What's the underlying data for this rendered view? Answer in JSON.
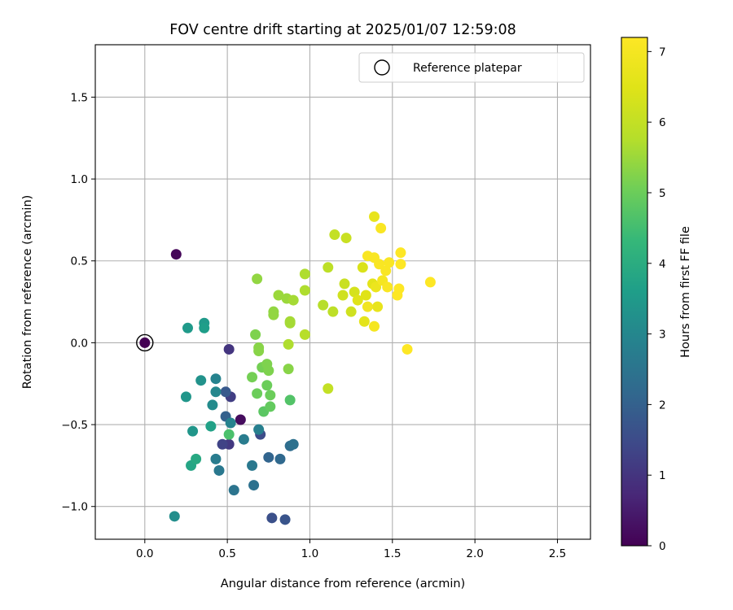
{
  "chart_data": {
    "type": "scatter",
    "title": "FOV centre drift starting at 2025/01/07 12:59:08",
    "xlabel": "Angular distance from reference (arcmin)",
    "ylabel": "Rotation from reference (arcmin)",
    "xlim": [
      -0.3,
      2.7
    ],
    "ylim": [
      -1.2,
      1.82
    ],
    "xticks": [
      0.0,
      0.5,
      1.0,
      1.5,
      2.0,
      2.5
    ],
    "xtick_labels": [
      "0.0",
      "0.5",
      "1.0",
      "1.5",
      "2.0",
      "2.5"
    ],
    "yticks": [
      -1.0,
      -0.5,
      0.0,
      0.5,
      1.0,
      1.5
    ],
    "ytick_labels": [
      "−1.0",
      "−0.5",
      "0.0",
      "0.5",
      "1.0",
      "1.5"
    ],
    "grid": true,
    "legend": {
      "position": "top-right",
      "entries": [
        "Reference platepar"
      ]
    },
    "colorbar": {
      "label": "Hours from first FF file",
      "range": [
        0,
        7.2
      ],
      "ticks": [
        0,
        1,
        2,
        3,
        4,
        5,
        6,
        7
      ],
      "tick_labels": [
        "0",
        "1",
        "2",
        "3",
        "4",
        "5",
        "6",
        "7"
      ],
      "colormap": "viridis"
    },
    "reference_point": {
      "x": 0.0,
      "y": 0.0,
      "label": "Reference platepar",
      "hours": 0.0
    },
    "points": [
      {
        "x": 0.0,
        "y": 0.0,
        "hours": 0.0
      },
      {
        "x": 0.19,
        "y": 0.54,
        "hours": 0.1
      },
      {
        "x": 0.58,
        "y": -0.47,
        "hours": 0.2
      },
      {
        "x": 0.51,
        "y": -0.04,
        "hours": 1.0
      },
      {
        "x": 0.51,
        "y": -0.62,
        "hours": 1.1
      },
      {
        "x": 0.52,
        "y": -0.33,
        "hours": 1.2
      },
      {
        "x": 0.47,
        "y": -0.62,
        "hours": 1.3
      },
      {
        "x": 0.7,
        "y": -0.56,
        "hours": 1.5
      },
      {
        "x": 0.77,
        "y": -1.07,
        "hours": 1.6
      },
      {
        "x": 0.85,
        "y": -1.08,
        "hours": 1.7
      },
      {
        "x": 0.49,
        "y": -0.3,
        "hours": 1.8
      },
      {
        "x": 0.49,
        "y": -0.45,
        "hours": 2.0
      },
      {
        "x": 0.75,
        "y": -0.7,
        "hours": 2.1
      },
      {
        "x": 0.82,
        "y": -0.71,
        "hours": 2.2
      },
      {
        "x": 0.88,
        "y": -0.63,
        "hours": 2.3
      },
      {
        "x": 0.9,
        "y": -0.62,
        "hours": 2.4
      },
      {
        "x": 0.66,
        "y": -0.87,
        "hours": 2.4
      },
      {
        "x": 0.54,
        "y": -0.9,
        "hours": 2.5
      },
      {
        "x": 0.65,
        "y": -0.75,
        "hours": 2.6
      },
      {
        "x": 0.45,
        "y": -0.78,
        "hours": 2.6
      },
      {
        "x": 0.43,
        "y": -0.71,
        "hours": 2.7
      },
      {
        "x": 0.6,
        "y": -0.59,
        "hours": 2.7
      },
      {
        "x": 0.69,
        "y": -0.53,
        "hours": 2.8
      },
      {
        "x": 0.52,
        "y": -0.49,
        "hours": 2.9
      },
      {
        "x": 0.43,
        "y": -0.22,
        "hours": 2.9
      },
      {
        "x": 0.43,
        "y": -0.3,
        "hours": 3.0
      },
      {
        "x": 0.41,
        "y": -0.38,
        "hours": 3.1
      },
      {
        "x": 0.18,
        "y": -1.06,
        "hours": 3.2
      },
      {
        "x": 0.34,
        "y": -0.23,
        "hours": 3.3
      },
      {
        "x": 0.25,
        "y": -0.33,
        "hours": 3.4
      },
      {
        "x": 0.29,
        "y": -0.54,
        "hours": 3.4
      },
      {
        "x": 0.26,
        "y": 0.09,
        "hours": 3.5
      },
      {
        "x": 0.36,
        "y": 0.12,
        "hours": 3.5
      },
      {
        "x": 0.36,
        "y": 0.09,
        "hours": 3.6
      },
      {
        "x": 0.4,
        "y": -0.51,
        "hours": 3.7
      },
      {
        "x": 0.28,
        "y": -0.75,
        "hours": 3.8
      },
      {
        "x": 0.31,
        "y": -0.71,
        "hours": 3.9
      },
      {
        "x": 0.51,
        "y": -0.56,
        "hours": 4.6
      },
      {
        "x": 0.88,
        "y": -0.35,
        "hours": 4.7
      },
      {
        "x": 0.72,
        "y": -0.42,
        "hours": 4.8
      },
      {
        "x": 0.76,
        "y": -0.39,
        "hours": 4.9
      },
      {
        "x": 0.68,
        "y": -0.31,
        "hours": 5.0
      },
      {
        "x": 0.74,
        "y": -0.26,
        "hours": 5.0
      },
      {
        "x": 0.76,
        "y": -0.32,
        "hours": 5.0
      },
      {
        "x": 0.65,
        "y": -0.21,
        "hours": 5.1
      },
      {
        "x": 0.71,
        "y": -0.15,
        "hours": 5.1
      },
      {
        "x": 0.74,
        "y": -0.13,
        "hours": 5.2
      },
      {
        "x": 0.75,
        "y": -0.17,
        "hours": 5.2
      },
      {
        "x": 0.67,
        "y": 0.05,
        "hours": 5.2
      },
      {
        "x": 0.69,
        "y": -0.03,
        "hours": 5.3
      },
      {
        "x": 0.69,
        "y": -0.05,
        "hours": 5.3
      },
      {
        "x": 0.87,
        "y": -0.16,
        "hours": 5.3
      },
      {
        "x": 0.68,
        "y": 0.39,
        "hours": 5.4
      },
      {
        "x": 0.78,
        "y": 0.19,
        "hours": 5.4
      },
      {
        "x": 0.78,
        "y": 0.17,
        "hours": 5.4
      },
      {
        "x": 0.81,
        "y": 0.29,
        "hours": 5.5
      },
      {
        "x": 0.86,
        "y": 0.27,
        "hours": 5.5
      },
      {
        "x": 0.9,
        "y": 0.26,
        "hours": 5.6
      },
      {
        "x": 0.88,
        "y": 0.13,
        "hours": 5.6
      },
      {
        "x": 0.88,
        "y": 0.12,
        "hours": 5.6
      },
      {
        "x": 0.87,
        "y": -0.01,
        "hours": 5.7
      },
      {
        "x": 0.97,
        "y": 0.42,
        "hours": 5.7
      },
      {
        "x": 0.97,
        "y": 0.32,
        "hours": 5.7
      },
      {
        "x": 0.97,
        "y": 0.05,
        "hours": 5.8
      },
      {
        "x": 1.08,
        "y": 0.23,
        "hours": 5.8
      },
      {
        "x": 1.11,
        "y": 0.46,
        "hours": 5.9
      },
      {
        "x": 1.14,
        "y": 0.19,
        "hours": 5.9
      },
      {
        "x": 1.11,
        "y": -0.28,
        "hours": 6.0
      },
      {
        "x": 1.15,
        "y": 0.66,
        "hours": 6.0
      },
      {
        "x": 1.22,
        "y": 0.64,
        "hours": 6.1
      },
      {
        "x": 1.21,
        "y": 0.36,
        "hours": 6.1
      },
      {
        "x": 1.2,
        "y": 0.29,
        "hours": 6.2
      },
      {
        "x": 1.25,
        "y": 0.19,
        "hours": 6.2
      },
      {
        "x": 1.27,
        "y": 0.31,
        "hours": 6.3
      },
      {
        "x": 1.32,
        "y": 0.46,
        "hours": 6.4
      },
      {
        "x": 1.29,
        "y": 0.26,
        "hours": 6.5
      },
      {
        "x": 1.34,
        "y": 0.29,
        "hours": 6.5
      },
      {
        "x": 1.33,
        "y": 0.13,
        "hours": 6.6
      },
      {
        "x": 1.38,
        "y": 0.36,
        "hours": 6.6
      },
      {
        "x": 1.39,
        "y": 0.77,
        "hours": 6.7
      },
      {
        "x": 1.41,
        "y": 0.22,
        "hours": 6.7
      },
      {
        "x": 1.4,
        "y": 0.34,
        "hours": 6.8
      },
      {
        "x": 1.35,
        "y": 0.22,
        "hours": 6.9
      },
      {
        "x": 1.39,
        "y": 0.1,
        "hours": 7.0
      },
      {
        "x": 1.44,
        "y": 0.38,
        "hours": 7.0
      },
      {
        "x": 1.43,
        "y": 0.7,
        "hours": 7.1
      },
      {
        "x": 1.35,
        "y": 0.53,
        "hours": 7.1
      },
      {
        "x": 1.39,
        "y": 0.52,
        "hours": 7.1
      },
      {
        "x": 1.42,
        "y": 0.48,
        "hours": 7.1
      },
      {
        "x": 1.46,
        "y": 0.44,
        "hours": 7.1
      },
      {
        "x": 1.48,
        "y": 0.49,
        "hours": 7.1
      },
      {
        "x": 1.47,
        "y": 0.34,
        "hours": 7.1
      },
      {
        "x": 1.54,
        "y": 0.33,
        "hours": 7.2
      },
      {
        "x": 1.53,
        "y": 0.29,
        "hours": 7.2
      },
      {
        "x": 1.55,
        "y": 0.55,
        "hours": 7.2
      },
      {
        "x": 1.55,
        "y": 0.48,
        "hours": 7.2
      },
      {
        "x": 1.73,
        "y": 0.37,
        "hours": 7.2
      },
      {
        "x": 1.59,
        "y": -0.04,
        "hours": 7.2
      }
    ]
  }
}
